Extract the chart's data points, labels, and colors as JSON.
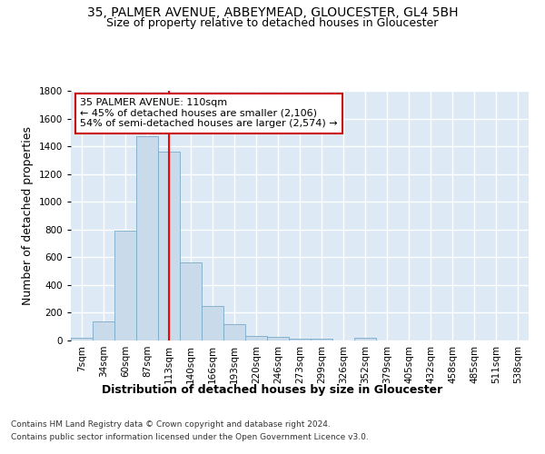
{
  "title_line1": "35, PALMER AVENUE, ABBEYMEAD, GLOUCESTER, GL4 5BH",
  "title_line2": "Size of property relative to detached houses in Gloucester",
  "xlabel": "Distribution of detached houses by size in Gloucester",
  "ylabel": "Number of detached properties",
  "bar_labels": [
    "7sqm",
    "34sqm",
    "60sqm",
    "87sqm",
    "113sqm",
    "140sqm",
    "166sqm",
    "193sqm",
    "220sqm",
    "246sqm",
    "273sqm",
    "299sqm",
    "326sqm",
    "352sqm",
    "379sqm",
    "405sqm",
    "432sqm",
    "458sqm",
    "485sqm",
    "511sqm",
    "538sqm"
  ],
  "bar_values": [
    20,
    135,
    790,
    1475,
    1360,
    565,
    247,
    115,
    32,
    28,
    15,
    13,
    0,
    20,
    0,
    0,
    0,
    0,
    0,
    0,
    0
  ],
  "bar_color": "#c9daea",
  "bar_edge_color": "#7aaac8",
  "bg_color": "#dde9f5",
  "grid_color": "#ffffff",
  "red_line_x": 4,
  "annotation_text_line1": "35 PALMER AVENUE: 110sqm",
  "annotation_text_line2": "← 45% of detached houses are smaller (2,106)",
  "annotation_text_line3": "54% of semi-detached houses are larger (2,574) →",
  "annotation_box_color": "#ffffff",
  "annotation_box_edge_color": "#cc0000",
  "footnote1": "Contains HM Land Registry data © Crown copyright and database right 2024.",
  "footnote2": "Contains public sector information licensed under the Open Government Licence v3.0.",
  "ylim": [
    0,
    1800
  ],
  "title_fontsize": 10,
  "subtitle_fontsize": 9,
  "axis_label_fontsize": 9,
  "tick_fontsize": 7.5,
  "ylabel_fontsize": 9
}
